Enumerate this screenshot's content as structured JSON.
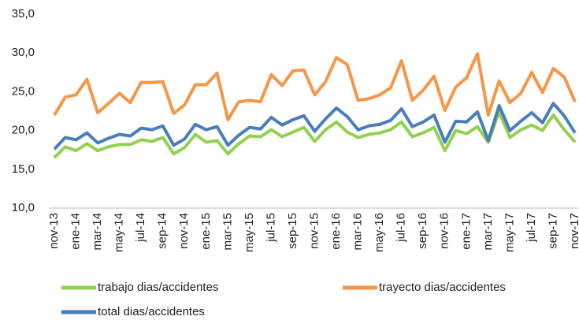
{
  "chart_data": {
    "type": "line",
    "categories": [
      "nov-13",
      null,
      "ene-14",
      null,
      "mar-14",
      null,
      "may-14",
      null,
      "jul-14",
      null,
      "sep-14",
      null,
      "nov-14",
      null,
      "ene-15",
      null,
      "mar-15",
      null,
      "may-15",
      null,
      "jul-15",
      null,
      "sep-15",
      null,
      "nov-15",
      null,
      "ene-16",
      null,
      "mar-16",
      null,
      "may-16",
      null,
      "jul-16",
      null,
      "sep-16",
      null,
      "nov-16",
      null,
      "ene-17",
      null,
      "mar-17",
      null,
      "may-17",
      null,
      "jul-17",
      null,
      "sep-17",
      null,
      "nov-17"
    ],
    "series": [
      {
        "name": "trabajo dias/accidentes",
        "color": "#92d050",
        "values": [
          16.5,
          17.9,
          17.4,
          18.3,
          17.4,
          17.9,
          18.2,
          18.2,
          18.8,
          18.6,
          19.1,
          17.0,
          17.8,
          19.5,
          18.5,
          18.7,
          17.0,
          18.3,
          19.3,
          19.2,
          20.1,
          19.2,
          19.8,
          20.4,
          18.6,
          20.1,
          21.1,
          19.8,
          19.1,
          19.5,
          19.7,
          20.1,
          21.1,
          19.2,
          19.7,
          20.4,
          17.4,
          20.0,
          19.6,
          20.5,
          18.5,
          22.4,
          19.1,
          20.1,
          20.7,
          20.0,
          22.0,
          20.1,
          18.5
        ]
      },
      {
        "name": "trayecto dias/accidentes",
        "color": "#f79646",
        "values": [
          22.0,
          24.3,
          24.6,
          26.6,
          22.3,
          23.5,
          24.8,
          23.6,
          26.2,
          26.2,
          26.3,
          22.2,
          23.3,
          25.9,
          25.9,
          27.4,
          21.4,
          23.7,
          23.9,
          23.7,
          27.2,
          25.8,
          27.7,
          27.8,
          24.6,
          26.3,
          29.4,
          28.5,
          23.9,
          24.1,
          24.6,
          25.5,
          29.0,
          23.9,
          25.2,
          27.0,
          22.6,
          25.6,
          26.8,
          29.9,
          22.0,
          26.4,
          23.6,
          24.8,
          27.5,
          24.9,
          28.0,
          26.9,
          23.7
        ]
      },
      {
        "name": "total dias/accidentes",
        "color": "#4a7ebb",
        "values": [
          17.6,
          19.1,
          18.8,
          19.7,
          18.4,
          19.0,
          19.5,
          19.3,
          20.3,
          20.1,
          20.6,
          18.1,
          18.9,
          20.8,
          20.1,
          20.5,
          18.1,
          19.4,
          20.4,
          20.2,
          21.7,
          20.7,
          21.4,
          21.9,
          19.9,
          21.5,
          22.9,
          21.8,
          20.1,
          20.6,
          20.8,
          21.3,
          22.8,
          20.5,
          21.1,
          22.0,
          18.5,
          21.2,
          21.1,
          22.4,
          18.7,
          23.2,
          20.0,
          21.2,
          22.3,
          21.0,
          23.5,
          21.9,
          19.7
        ]
      }
    ],
    "ylim": [
      10,
      35
    ],
    "yticks": [
      {
        "value": 10,
        "label": "10,0"
      },
      {
        "value": 15,
        "label": "15,0"
      },
      {
        "value": 20,
        "label": "20,0"
      },
      {
        "value": 25,
        "label": "25,0"
      },
      {
        "value": 30,
        "label": "30,0"
      },
      {
        "value": 35,
        "label": "35,0"
      }
    ],
    "grid": false,
    "legend": "bottom"
  }
}
